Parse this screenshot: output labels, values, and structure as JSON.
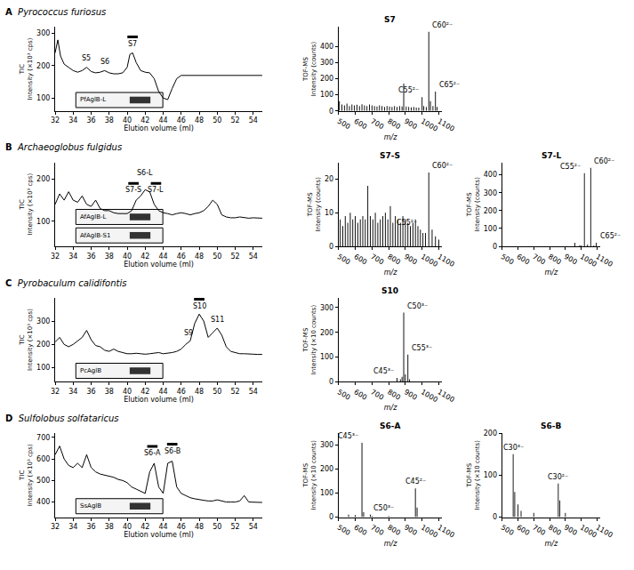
{
  "chart_data": [
    {
      "type": "line",
      "label": "A",
      "title": "Pyrococcus furiosus",
      "color": "#000000",
      "x": [
        32,
        32.3,
        32.6,
        33,
        33.5,
        34,
        34.5,
        35,
        35.5,
        36,
        36.5,
        37,
        37.5,
        38,
        38.5,
        39,
        39.5,
        40,
        40.3,
        40.6,
        41,
        41.5,
        42,
        42.5,
        43,
        43.5,
        44,
        44.5,
        45,
        45.5,
        46,
        47,
        48,
        49,
        50,
        51,
        52,
        53,
        54,
        55
      ],
      "values": [
        240,
        280,
        230,
        205,
        195,
        185,
        180,
        185,
        195,
        182,
        178,
        180,
        185,
        178,
        175,
        175,
        178,
        195,
        235,
        240,
        210,
        185,
        180,
        178,
        160,
        120,
        100,
        95,
        130,
        160,
        170,
        170,
        172,
        170,
        172,
        170,
        170,
        172,
        170,
        170
      ],
      "xlim": [
        32,
        55
      ],
      "xticks": [
        32,
        34,
        36,
        38,
        40,
        42,
        44,
        46,
        48,
        50,
        52,
        54
      ],
      "ylim": [
        60,
        320
      ],
      "yticks": [
        100,
        200,
        300
      ],
      "xlabel": "Elution volume (ml)",
      "ylabel": [
        "TIC",
        "Intensity (×10³ cps)"
      ],
      "annotations": [
        {
          "text": "S5",
          "x": 35.5,
          "y": 205
        },
        {
          "text": "S6",
          "x": 37.5,
          "y": 195
        },
        {
          "text": "S7",
          "x": 40.6,
          "y": 250
        }
      ],
      "inset_labels": [
        "PfAglB-L"
      ],
      "grid": false
    },
    {
      "type": "bar",
      "title": "S7",
      "color": "#000000",
      "x": [
        505,
        520,
        535,
        550,
        565,
        580,
        595,
        610,
        625,
        640,
        655,
        670,
        685,
        700,
        715,
        730,
        745,
        760,
        775,
        790,
        805,
        820,
        835,
        850,
        865,
        880,
        890,
        905,
        920,
        935,
        950,
        965,
        980,
        1000,
        1010,
        1025,
        1040,
        1050,
        1065,
        1080,
        1090
      ],
      "values": [
        60,
        40,
        35,
        45,
        30,
        40,
        35,
        38,
        30,
        42,
        35,
        30,
        40,
        35,
        30,
        28,
        35,
        30,
        25,
        30,
        28,
        25,
        30,
        25,
        30,
        28,
        170,
        28,
        25,
        22,
        25,
        20,
        20,
        85,
        30,
        25,
        490,
        60,
        30,
        120,
        25
      ],
      "xlim": [
        500,
        1120
      ],
      "xticks": [
        500,
        600,
        700,
        800,
        900,
        1000,
        1100
      ],
      "ylim": [
        0,
        520
      ],
      "yticks": [
        0,
        100,
        200,
        300,
        400
      ],
      "xlabel": "m/z",
      "ylabel": [
        "TOF-MS",
        "Intensity (counts)"
      ],
      "annotations": [
        {
          "text": "C55²⁻",
          "x": 1000,
          "y": 85
        },
        {
          "text": "C60²⁻",
          "x": 1040,
          "y": 490
        },
        {
          "text": "C65²⁻",
          "x": 1080,
          "y": 120
        }
      ],
      "grid": false
    },
    {
      "type": "line",
      "label": "B",
      "title": "Archaeoglobus fulgidus",
      "color": "#000000",
      "x": [
        32,
        32.5,
        33,
        33.5,
        34,
        34.5,
        35,
        35.5,
        36,
        36.5,
        37,
        37.5,
        38,
        38.5,
        39,
        39.5,
        40,
        40.5,
        41,
        41.5,
        42,
        42.5,
        43,
        43.5,
        44,
        44.5,
        45,
        45.5,
        46,
        46.5,
        47,
        47.5,
        48,
        48.5,
        49,
        49.5,
        50,
        50.5,
        51,
        51.5,
        52,
        52.5,
        53,
        53.5,
        54,
        54.5,
        55
      ],
      "values": [
        140,
        165,
        150,
        170,
        150,
        145,
        160,
        140,
        135,
        150,
        130,
        125,
        125,
        120,
        118,
        118,
        118,
        125,
        150,
        160,
        175,
        170,
        140,
        125,
        120,
        118,
        115,
        118,
        120,
        118,
        115,
        118,
        120,
        125,
        135,
        150,
        140,
        115,
        110,
        108,
        108,
        110,
        108,
        107,
        108,
        107,
        107
      ],
      "xlim": [
        32,
        55
      ],
      "xticks": [
        32,
        34,
        36,
        38,
        40,
        42,
        44,
        46,
        48,
        50,
        52,
        54
      ],
      "ylim": [
        40,
        240
      ],
      "yticks": [
        100,
        200
      ],
      "xlabel": "Elution volume (ml)",
      "ylabel": [
        "TIC",
        "Intensity (×10³ cps)"
      ],
      "annotations": [
        {
          "text": "S7-S",
          "x": 40.7,
          "y": 160
        },
        {
          "text": "S6-L",
          "x": 42.0,
          "y": 200
        },
        {
          "text": "S7-L",
          "x": 43.2,
          "y": 160
        }
      ],
      "inset_labels": [
        "AfAglB-L",
        "AfAglB-S1"
      ],
      "grid": false
    },
    {
      "type": "bar",
      "title": "S7-S",
      "color": "#000000",
      "x": [
        510,
        525,
        540,
        555,
        570,
        585,
        600,
        615,
        630,
        645,
        660,
        675,
        690,
        705,
        720,
        735,
        750,
        765,
        780,
        795,
        810,
        825,
        840,
        855,
        870,
        885,
        900,
        915,
        930,
        945,
        960,
        975,
        990,
        1005,
        1020,
        1040,
        1060,
        1080,
        1100
      ],
      "values": [
        8,
        6,
        9,
        7,
        10,
        8,
        9,
        7,
        8,
        9,
        8,
        18,
        9,
        8,
        10,
        7,
        8,
        9,
        10,
        8,
        12,
        7,
        9,
        8,
        7,
        9,
        8,
        7,
        6,
        7,
        8,
        6,
        5,
        4,
        4,
        22,
        5,
        3,
        2
      ],
      "xlim": [
        500,
        1120
      ],
      "xticks": [
        500,
        600,
        700,
        800,
        900,
        1000,
        1100
      ],
      "ylim": [
        0,
        25
      ],
      "yticks": [
        0,
        10,
        20
      ],
      "xlabel": "m/z",
      "ylabel": [
        "TOF-MS",
        "Intensity (counts)"
      ],
      "annotations": [
        {
          "text": "C55²⁻",
          "x": 990,
          "y": 5
        },
        {
          "text": "C60²⁻",
          "x": 1040,
          "y": 22
        }
      ],
      "grid": false
    },
    {
      "type": "bar",
      "title": "S7-L",
      "color": "#000000",
      "x": [
        960,
        990,
        1000,
        1020,
        1040,
        1060,
        1080,
        1095
      ],
      "values": [
        20,
        5,
        5,
        410,
        10,
        440,
        5,
        20
      ],
      "xlim": [
        500,
        1120
      ],
      "xticks": [
        500,
        600,
        700,
        800,
        900,
        1000,
        1100
      ],
      "ylim": [
        0,
        470
      ],
      "yticks": [
        0,
        100,
        200,
        300,
        400
      ],
      "xlabel": "m/z",
      "ylabel": [
        "TOF-MS",
        "Intensity (counts)"
      ],
      "annotations": [
        {
          "text": "C55²⁻",
          "x": 1020,
          "y": 410
        },
        {
          "text": "C60²⁻",
          "x": 1060,
          "y": 440
        },
        {
          "text": "C65²⁻",
          "x": 1095,
          "y": 20
        }
      ],
      "grid": false
    },
    {
      "type": "line",
      "label": "C",
      "title": "Pyrobaculum calidifontis",
      "color": "#000000",
      "x": [
        32,
        32.5,
        33,
        33.5,
        34,
        34.5,
        35,
        35.5,
        36,
        36.5,
        37,
        37.5,
        38,
        38.5,
        39,
        39.5,
        40,
        40.5,
        41,
        41.5,
        42,
        42.5,
        43,
        43.5,
        44,
        44.5,
        45,
        45.5,
        46,
        46.5,
        47,
        47.5,
        48,
        48.5,
        49,
        49.5,
        50,
        50.5,
        51,
        51.5,
        52,
        52.5,
        53,
        53.5,
        54,
        54.5,
        55
      ],
      "values": [
        210,
        230,
        200,
        190,
        200,
        215,
        230,
        260,
        220,
        195,
        190,
        175,
        170,
        180,
        170,
        165,
        160,
        160,
        162,
        160,
        158,
        160,
        162,
        165,
        160,
        162,
        165,
        170,
        180,
        200,
        215,
        290,
        330,
        300,
        230,
        250,
        270,
        240,
        190,
        170,
        165,
        160,
        160,
        158,
        158,
        157,
        157
      ],
      "xlim": [
        32,
        55
      ],
      "xticks": [
        32,
        34,
        36,
        38,
        40,
        42,
        44,
        46,
        48,
        50,
        52,
        54
      ],
      "ylim": [
        40,
        400
      ],
      "yticks": [
        100,
        200,
        300
      ],
      "xlabel": "Elution volume (ml)",
      "ylabel": [
        "TIC",
        "Intensity (×10³ cps)"
      ],
      "annotations": [
        {
          "text": "S9",
          "x": 46.8,
          "y": 225
        },
        {
          "text": "S10",
          "x": 48.0,
          "y": 340
        },
        {
          "text": "S11",
          "x": 50.0,
          "y": 280
        }
      ],
      "inset_labels": [
        "PcAglB"
      ],
      "grid": false
    },
    {
      "type": "bar",
      "title": "S10",
      "color": "#000000",
      "x": [
        850,
        870,
        880,
        890,
        900,
        915,
        925
      ],
      "values": [
        15,
        10,
        20,
        280,
        30,
        110,
        10
      ],
      "xlim": [
        500,
        1120
      ],
      "xticks": [
        500,
        600,
        700,
        800,
        900,
        1000,
        1100
      ],
      "ylim": [
        0,
        340
      ],
      "yticks": [
        0,
        100,
        200,
        300
      ],
      "xlabel": "m/z",
      "ylabel": [
        "TOF-MS",
        "Intensity (×10 counts)"
      ],
      "annotations": [
        {
          "text": "C45³⁻",
          "x": 850,
          "y": 15
        },
        {
          "text": "C50³⁻",
          "x": 890,
          "y": 280
        },
        {
          "text": "C55³⁻",
          "x": 915,
          "y": 110
        }
      ],
      "grid": false
    },
    {
      "type": "line",
      "label": "D",
      "title": "Sulfolobus solfataricus",
      "color": "#000000",
      "x": [
        32,
        32.5,
        33,
        33.5,
        34,
        34.5,
        35,
        35.5,
        36,
        36.5,
        37,
        37.5,
        38,
        38.5,
        39,
        39.5,
        40,
        40.5,
        41,
        41.5,
        42,
        42.5,
        43,
        43.5,
        44,
        44.5,
        45,
        45.5,
        46,
        46.5,
        47,
        47.5,
        48,
        48.5,
        49,
        49.5,
        50,
        50.5,
        51,
        51.5,
        52,
        52.5,
        53,
        53.5,
        54,
        54.5,
        55
      ],
      "values": [
        620,
        660,
        600,
        570,
        560,
        580,
        560,
        620,
        560,
        540,
        530,
        525,
        520,
        515,
        505,
        500,
        490,
        470,
        460,
        450,
        440,
        540,
        580,
        470,
        440,
        580,
        590,
        470,
        440,
        430,
        420,
        415,
        410,
        408,
        405,
        405,
        410,
        405,
        400,
        400,
        400,
        405,
        430,
        400,
        400,
        398,
        398
      ],
      "xlim": [
        32,
        55
      ],
      "xticks": [
        32,
        34,
        36,
        38,
        40,
        42,
        44,
        46,
        48,
        50,
        52,
        54
      ],
      "ylim": [
        330,
        720
      ],
      "yticks": [
        400,
        500,
        600,
        700
      ],
      "xlabel": "Elution volume (ml)",
      "ylabel": [
        "TIC",
        "Intensity (×10³ cps)"
      ],
      "annotations": [
        {
          "text": "S6-A",
          "x": 42.8,
          "y": 600
        },
        {
          "text": "S6-B",
          "x": 45.0,
          "y": 610
        }
      ],
      "inset_labels": [
        "SsAglB"
      ],
      "grid": false
    },
    {
      "type": "bar",
      "title": "S6-A",
      "color": "#000000",
      "x": [
        560,
        600,
        640,
        650,
        690,
        700,
        800,
        960,
        970
      ],
      "values": [
        10,
        8,
        310,
        20,
        10,
        5,
        5,
        120,
        40
      ],
      "xlim": [
        500,
        1120
      ],
      "xticks": [
        500,
        600,
        700,
        800,
        900,
        1000,
        1100
      ],
      "ylim": [
        0,
        350
      ],
      "yticks": [
        0,
        100,
        200,
        300
      ],
      "xlabel": "m/z",
      "ylabel": [
        "TOF-MS",
        "Intensity (×10 counts)"
      ],
      "annotations": [
        {
          "text": "C45³⁻",
          "x": 640,
          "y": 310
        },
        {
          "text": "C50³⁻",
          "x": 690,
          "y": 10
        },
        {
          "text": "C45²⁻",
          "x": 960,
          "y": 120
        }
      ],
      "grid": false
    },
    {
      "type": "bar",
      "title": "S6-B",
      "color": "#000000",
      "x": [
        570,
        580,
        600,
        620,
        700,
        855,
        865,
        900
      ],
      "values": [
        150,
        60,
        30,
        15,
        10,
        80,
        40,
        10
      ],
      "xlim": [
        500,
        1120
      ],
      "xticks": [
        500,
        600,
        700,
        800,
        900,
        1000,
        1100
      ],
      "ylim": [
        0,
        200
      ],
      "yticks": [
        0,
        100,
        200
      ],
      "xlabel": "m/z",
      "ylabel": [
        "TOF-MS",
        "Intensity (×10 counts)"
      ],
      "annotations": [
        {
          "text": "C30³⁻",
          "x": 570,
          "y": 150
        },
        {
          "text": "C30²⁻",
          "x": 855,
          "y": 80
        }
      ],
      "grid": false
    }
  ]
}
